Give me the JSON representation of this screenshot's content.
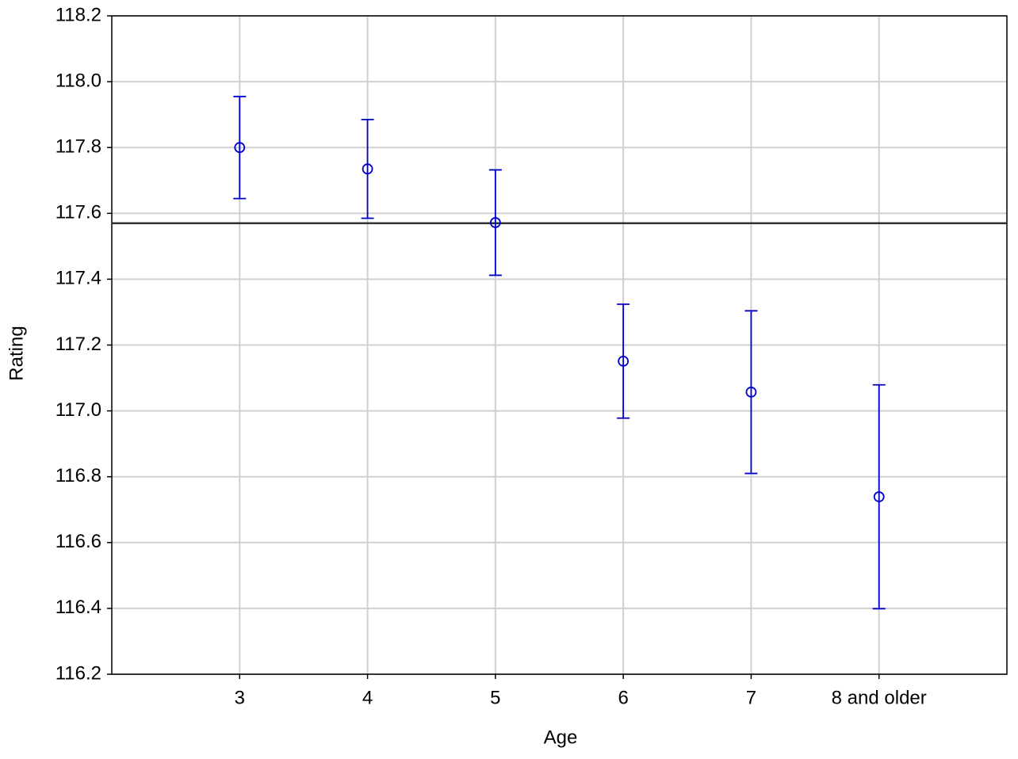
{
  "chart_data": {
    "type": "errorbar",
    "x_label": "Age",
    "y_label": "Rating",
    "categories": [
      "3",
      "4",
      "5",
      "6",
      "7",
      "8 and older"
    ],
    "values": [
      117.8,
      117.735,
      117.572,
      117.151,
      117.057,
      116.739
    ],
    "errors": [
      0.155,
      0.15,
      0.16,
      0.173,
      0.247,
      0.34
    ],
    "color": "#0000cc",
    "reference_line": 117.57,
    "ylim": [
      116.2,
      118.2
    ],
    "yticks": [
      116.2,
      116.4,
      116.6,
      116.8,
      {
        "value": 117,
        "label": "117.0"
      },
      117.2,
      117.4,
      117.6,
      117.8,
      {
        "value": 118,
        "label": "118.0"
      },
      118.2
    ],
    "grid": true
  }
}
